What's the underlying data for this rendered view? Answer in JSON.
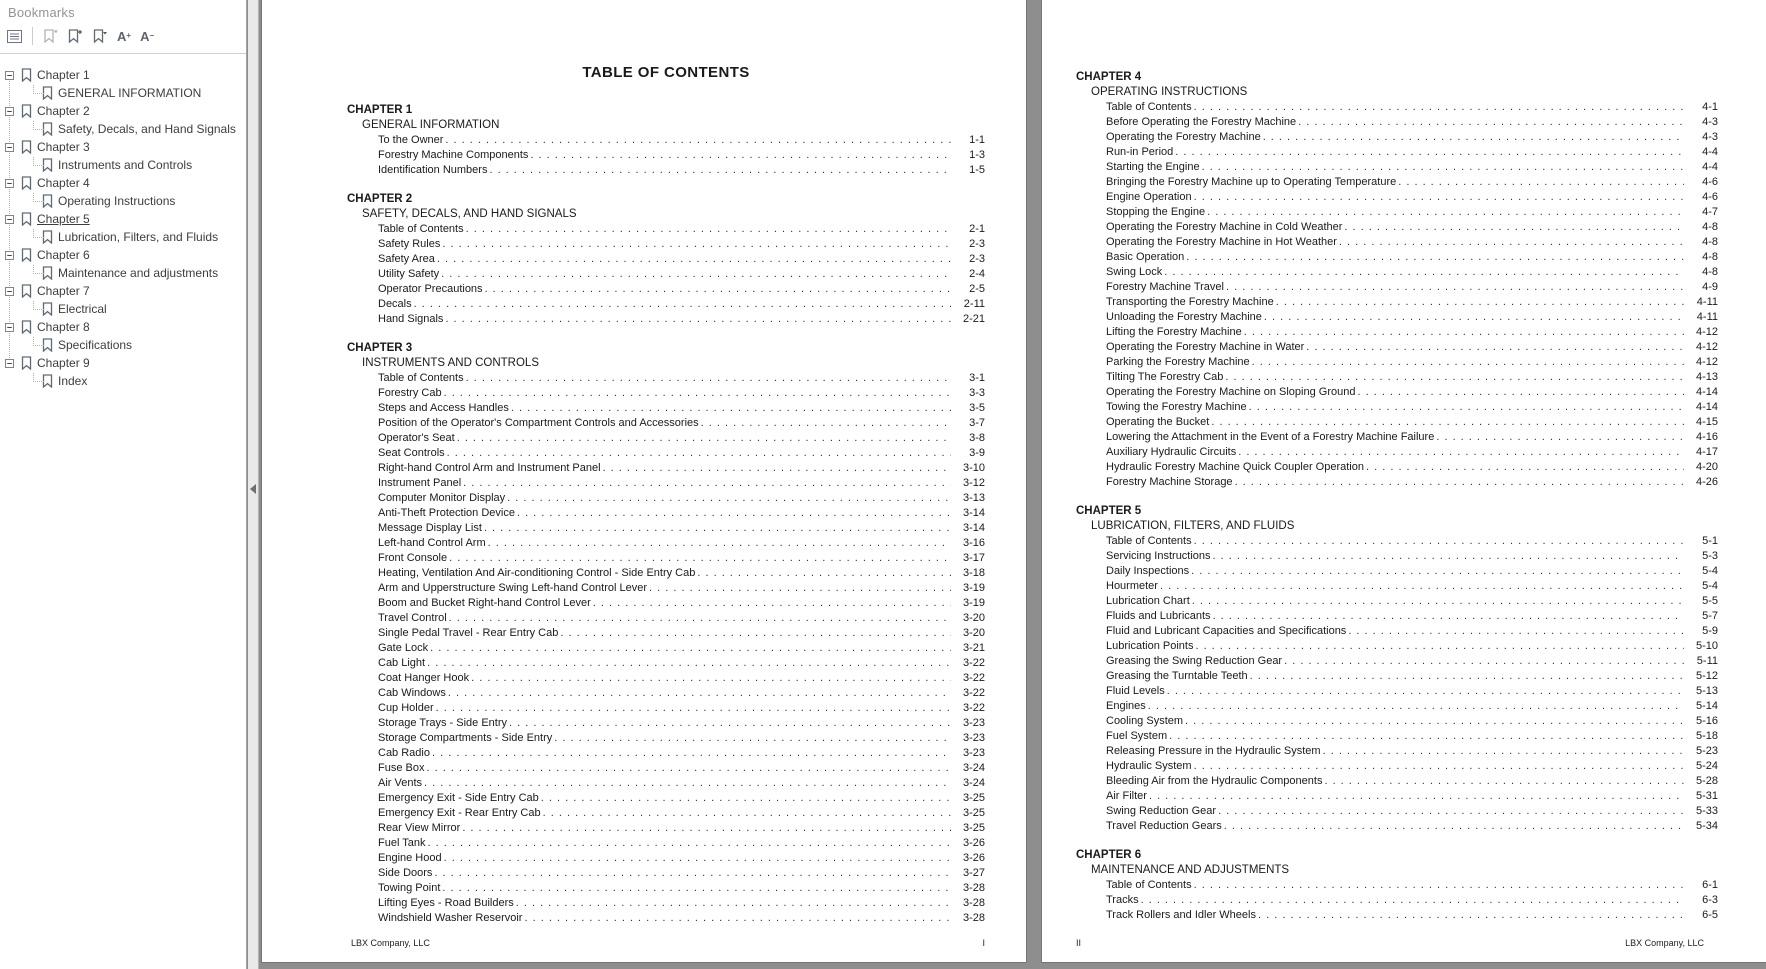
{
  "colors": {
    "canvas_background": "#8e8e8e",
    "page_background": "#ffffff",
    "text": "#1a1a1a",
    "sidebar_background": "#ffffff",
    "icon_gray": "#5f6a75"
  },
  "bookmarks": {
    "title": "Bookmarks",
    "toolbar_icons": [
      "panel-options",
      "new-bookmark-disabled",
      "add-bookmark",
      "bookmark-options",
      "increase-text-size",
      "decrease-text-size"
    ],
    "text_size_labels": {
      "increase": "A",
      "decrease": "A",
      "plus": "+",
      "minus": "-"
    },
    "items": [
      {
        "chapter": "Chapter 1",
        "section": "GENERAL INFORMATION",
        "selected": false
      },
      {
        "chapter": "Chapter 2",
        "section": "Safety, Decals, and Hand Signals",
        "selected": false
      },
      {
        "chapter": "Chapter 3",
        "section": "Instruments and Controls",
        "selected": false
      },
      {
        "chapter": "Chapter 4",
        "section": "Operating Instructions",
        "selected": false
      },
      {
        "chapter": "Chapter 5",
        "section": "Lubrication, Filters, and Fluids",
        "selected": true
      },
      {
        "chapter": "Chapter 6",
        "section": "Maintenance and adjustments",
        "selected": false
      },
      {
        "chapter": "Chapter 7",
        "section": "Electrical",
        "selected": false
      },
      {
        "chapter": "Chapter 8",
        "section": "Specifications",
        "selected": false
      },
      {
        "chapter": "Chapter 9",
        "section": "Index",
        "selected": false
      }
    ]
  },
  "document": {
    "page1": {
      "title": "TABLE OF CONTENTS",
      "footer_left": "LBX Company, LLC",
      "footer_right": "I",
      "chapters": [
        {
          "heading": "CHAPTER 1",
          "section": "GENERAL INFORMATION",
          "entries": [
            [
              "To the Owner",
              "1-1"
            ],
            [
              "Forestry Machine Components",
              "1-3"
            ],
            [
              "Identification Numbers",
              "1-5"
            ]
          ]
        },
        {
          "heading": "CHAPTER 2",
          "section": "SAFETY, DECALS, AND HAND SIGNALS",
          "entries": [
            [
              "Table of Contents",
              "2-1"
            ],
            [
              "Safety Rules",
              "2-3"
            ],
            [
              "Safety Area",
              "2-3"
            ],
            [
              "Utility Safety",
              "2-4"
            ],
            [
              "Operator Precautions",
              "2-5"
            ],
            [
              "Decals",
              "2-11"
            ],
            [
              "Hand Signals",
              "2-21"
            ]
          ]
        },
        {
          "heading": "CHAPTER 3",
          "section": "INSTRUMENTS AND CONTROLS",
          "entries": [
            [
              "Table of Contents",
              "3-1"
            ],
            [
              "Forestry Cab",
              "3-3"
            ],
            [
              "Steps and Access Handles",
              "3-5"
            ],
            [
              "Position of the Operator's Compartment Controls and Accessories",
              "3-7"
            ],
            [
              "Operator's Seat",
              "3-8"
            ],
            [
              "Seat Controls",
              "3-9"
            ],
            [
              "Right-hand Control Arm and Instrument Panel",
              "3-10"
            ],
            [
              "Instrument Panel",
              "3-12"
            ],
            [
              "Computer Monitor Display",
              "3-13"
            ],
            [
              "Anti-Theft Protection Device",
              "3-14"
            ],
            [
              "Message Display List",
              "3-14"
            ],
            [
              "Left-hand Control Arm",
              "3-16"
            ],
            [
              "Front Console",
              "3-17"
            ],
            [
              "Heating, Ventilation And Air-conditioning Control - Side Entry Cab",
              "3-18"
            ],
            [
              "Arm and Upperstructure Swing Left-hand Control Lever",
              "3-19"
            ],
            [
              "Boom and Bucket Right-hand Control Lever",
              "3-19"
            ],
            [
              "Travel Control",
              "3-20"
            ],
            [
              "Single Pedal Travel - Rear Entry Cab",
              "3-20"
            ],
            [
              "Gate Lock",
              "3-21"
            ],
            [
              "Cab Light",
              "3-22"
            ],
            [
              "Coat Hanger Hook",
              "3-22"
            ],
            [
              "Cab Windows",
              "3-22"
            ],
            [
              "Cup Holder",
              "3-22"
            ],
            [
              "Storage Trays - Side Entry",
              "3-23"
            ],
            [
              "Storage Compartments - Side Entry",
              "3-23"
            ],
            [
              "Cab Radio",
              "3-23"
            ],
            [
              "Fuse Box",
              "3-24"
            ],
            [
              "Air Vents",
              "3-24"
            ],
            [
              "Emergency Exit - Side Entry Cab",
              "3-25"
            ],
            [
              "Emergency Exit - Rear Entry Cab",
              "3-25"
            ],
            [
              "Rear View Mirror",
              "3-25"
            ],
            [
              "Fuel Tank",
              "3-26"
            ],
            [
              "Engine Hood",
              "3-26"
            ],
            [
              "Side Doors",
              "3-27"
            ],
            [
              "Towing Point",
              "3-28"
            ],
            [
              "Lifting Eyes - Road Builders",
              "3-28"
            ],
            [
              "Windshield Washer Reservoir",
              "3-28"
            ]
          ]
        }
      ]
    },
    "page2": {
      "footer_left": "II",
      "footer_right": "LBX Company, LLC",
      "chapters": [
        {
          "heading": "CHAPTER 4",
          "section": "OPERATING INSTRUCTIONS",
          "entries": [
            [
              "Table of Contents",
              "4-1"
            ],
            [
              "Before Operating the Forestry Machine",
              "4-3"
            ],
            [
              "Operating the Forestry Machine",
              "4-3"
            ],
            [
              "Run-in Period",
              "4-4"
            ],
            [
              "Starting the Engine",
              "4-4"
            ],
            [
              "Bringing the Forestry Machine up to Operating Temperature",
              "4-6"
            ],
            [
              "Engine Operation",
              "4-6"
            ],
            [
              "Stopping the Engine",
              "4-7"
            ],
            [
              "Operating the Forestry Machine in Cold Weather",
              "4-8"
            ],
            [
              "Operating the Forestry Machine in Hot Weather",
              "4-8"
            ],
            [
              "Basic Operation",
              "4-8"
            ],
            [
              "Swing Lock",
              "4-8"
            ],
            [
              "Forestry Machine Travel",
              "4-9"
            ],
            [
              "Transporting the Forestry Machine",
              "4-11"
            ],
            [
              "Unloading the Forestry Machine",
              "4-11"
            ],
            [
              "Lifting the Forestry Machine",
              "4-12"
            ],
            [
              "Operating the Forestry Machine in Water",
              "4-12"
            ],
            [
              "Parking the Forestry Machine",
              "4-12"
            ],
            [
              "Tilting The Forestry Cab",
              "4-13"
            ],
            [
              "Operating the Forestry Machine on Sloping Ground",
              "4-14"
            ],
            [
              "Towing the Forestry Machine",
              "4-14"
            ],
            [
              "Operating the Bucket",
              "4-15"
            ],
            [
              "Lowering the Attachment in the Event of a Forestry Machine Failure",
              "4-16"
            ],
            [
              "Auxiliary Hydraulic Circuits",
              "4-17"
            ],
            [
              "Hydraulic Forestry Machine Quick Coupler Operation",
              "4-20"
            ],
            [
              "Forestry Machine Storage",
              "4-26"
            ]
          ]
        },
        {
          "heading": "CHAPTER 5",
          "section": "LUBRICATION, FILTERS, AND FLUIDS",
          "entries": [
            [
              "Table of Contents",
              "5-1"
            ],
            [
              "Servicing Instructions",
              "5-3"
            ],
            [
              "Daily Inspections",
              "5-4"
            ],
            [
              "Hourmeter",
              "5-4"
            ],
            [
              "Lubrication Chart",
              "5-5"
            ],
            [
              "Fluids and Lubricants",
              "5-7"
            ],
            [
              "Fluid and Lubricant Capacities and Specifications",
              "5-9"
            ],
            [
              "Lubrication Points",
              "5-10"
            ],
            [
              "Greasing the Swing Reduction Gear",
              "5-11"
            ],
            [
              "Greasing the Turntable Teeth",
              "5-12"
            ],
            [
              "Fluid Levels",
              "5-13"
            ],
            [
              "Engines",
              "5-14"
            ],
            [
              "Cooling System",
              "5-16"
            ],
            [
              "Fuel System",
              "5-18"
            ],
            [
              "Releasing Pressure in the Hydraulic System",
              "5-23"
            ],
            [
              "Hydraulic System",
              "5-24"
            ],
            [
              "Bleeding Air from the Hydraulic Components",
              "5-28"
            ],
            [
              "Air Filter",
              "5-31"
            ],
            [
              "Swing Reduction Gear",
              "5-33"
            ],
            [
              "Travel Reduction Gears",
              "5-34"
            ]
          ]
        },
        {
          "heading": "CHAPTER 6",
          "section": "MAINTENANCE AND ADJUSTMENTS",
          "entries": [
            [
              "Table of Contents",
              "6-1"
            ],
            [
              "Tracks",
              "6-3"
            ],
            [
              "Track Rollers and Idler Wheels",
              "6-5"
            ]
          ]
        }
      ]
    }
  }
}
